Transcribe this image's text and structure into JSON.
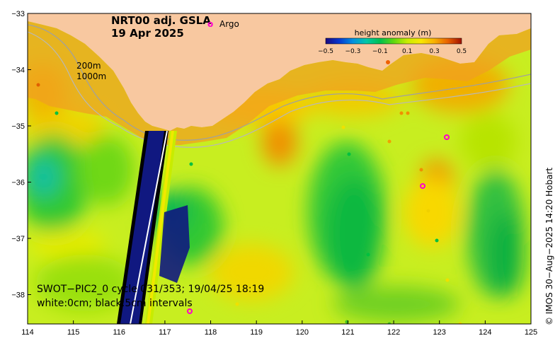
{
  "title": {
    "line1": "NRT00 adj. GSLA",
    "line2": "19 Apr 2025"
  },
  "legend": {
    "argo_symbol": "o",
    "argo_label": "Argo"
  },
  "colorbar": {
    "title": "height anomaly (m)",
    "tick_labels": [
      "−0.5",
      "−0.3",
      "−0.1",
      "0.1",
      "0.3",
      "0.5"
    ],
    "colors": [
      "#2a0a7a",
      "#1030c0",
      "#0080e0",
      "#00c8b0",
      "#00c060",
      "#40d020",
      "#a8e800",
      "#f0f000",
      "#f8c000",
      "#f08000",
      "#e04000",
      "#a00000"
    ]
  },
  "isobaths": {
    "label_200": "200m",
    "label_1000": "1000m"
  },
  "swot": {
    "line1": "SWOT−PIC2_0  cycle 031/353; 19/04/25 18:19",
    "line2": "white:0cm; black:5cm intervals"
  },
  "x_ticks": [
    "114",
    "115",
    "116",
    "117",
    "118",
    "119",
    "120",
    "121",
    "122",
    "123",
    "124",
    "125"
  ],
  "y_ticks": [
    "−33",
    "−34",
    "−35",
    "−36",
    "−37",
    "−38"
  ],
  "credit": "© IMOS 30−Aug−2025 14:20 Hobart",
  "colors": {
    "land": "#f8c8a0",
    "sea_base": "#c8ee20",
    "argo": "#ff00cc"
  }
}
